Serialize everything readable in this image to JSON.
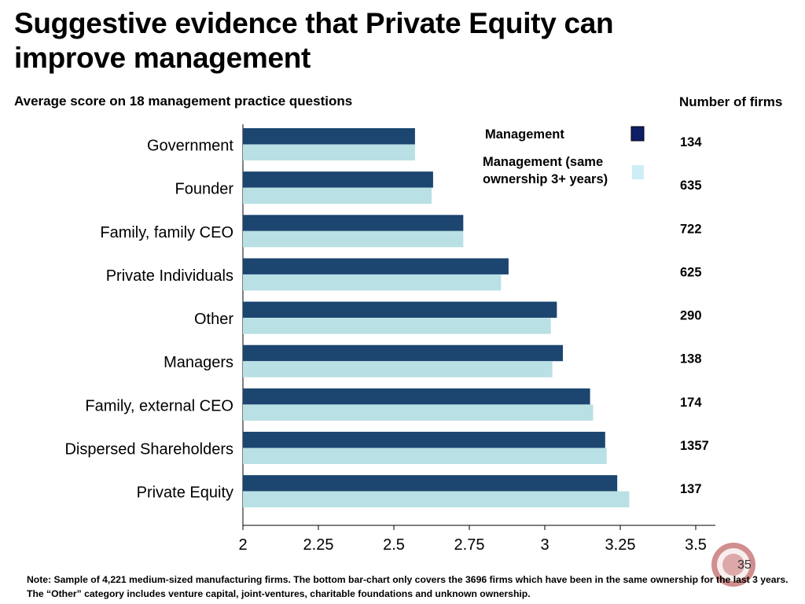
{
  "title": "Suggestive evidence that Private Equity can improve management",
  "page_number": "35",
  "note": "Note: Sample of 4,221 medium-sized manufacturing firms. The bottom bar-chart only covers the 3696 firms which have been in the same ownership for the last 3 years. The “Other” category includes venture capital, joint-ventures, charitable foundations and unknown ownership.",
  "chart_data": {
    "type": "bar",
    "orientation": "horizontal",
    "title": "Average score on 18 management practice questions",
    "xlabel": "",
    "ylabel": "",
    "xlim": [
      2,
      3.5
    ],
    "xticks": [
      "2",
      "2.25",
      "2.5",
      "2.75",
      "3",
      "3.25",
      "3.5"
    ],
    "grid": false,
    "legend_position": "top-right",
    "categories": [
      "Government",
      "Founder",
      "Family, family CEO",
      "Private Individuals",
      "Other",
      "Managers",
      "Family, external CEO",
      "Dispersed Shareholders",
      "Private Equity"
    ],
    "series": [
      {
        "name": "Management",
        "color": "#1c4570",
        "values": [
          2.57,
          2.63,
          2.73,
          2.88,
          3.04,
          3.06,
          3.15,
          3.2,
          3.24
        ]
      },
      {
        "name": "Management (same ownership 3+ years)",
        "color": "#b9e0e4",
        "values": [
          2.57,
          2.625,
          2.73,
          2.855,
          3.02,
          3.025,
          3.16,
          3.205,
          3.28
        ]
      }
    ],
    "number_of_firms": {
      "header": "Number of firms",
      "values": [
        "134",
        "635",
        "722",
        "625",
        "290",
        "138",
        "174",
        "1357",
        "137"
      ]
    }
  }
}
